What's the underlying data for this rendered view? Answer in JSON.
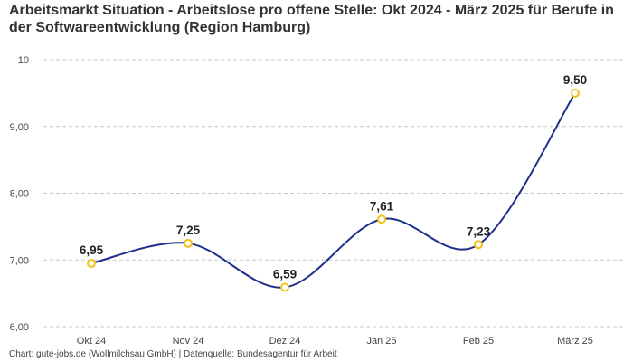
{
  "title": "Arbeitsmarkt Situation - Arbeitslose pro offene Stelle: Okt 2024 - März 2025 für Berufe in der Softwareentwicklung (Region Hamburg)",
  "footer": "Chart: gute-jobs.de (Wollmilchsau GmbH) | Datenquelle: Bundesagentur für Arbeit",
  "colors": {
    "line": "#1f2f8c",
    "marker_fill": "#ffffff",
    "marker_stroke": "#f2c318",
    "grid": "#c8c8c8"
  },
  "chart_data": {
    "type": "line",
    "categories": [
      "Okt 24",
      "Nov 24",
      "Dez 24",
      "Jan 25",
      "Feb 25",
      "März 25"
    ],
    "values": [
      6.95,
      7.25,
      6.59,
      7.61,
      7.23,
      9.5
    ],
    "data_labels": [
      "6,95",
      "7,25",
      "6,59",
      "7,61",
      "7,23",
      "9,50"
    ],
    "ylim": [
      6,
      10
    ],
    "yticks": [
      6,
      7,
      8,
      9,
      10
    ],
    "ytick_labels": [
      "6,00",
      "7,00",
      "8,00",
      "9,00",
      "10"
    ],
    "grid": true,
    "xlabel": "",
    "ylabel": ""
  }
}
